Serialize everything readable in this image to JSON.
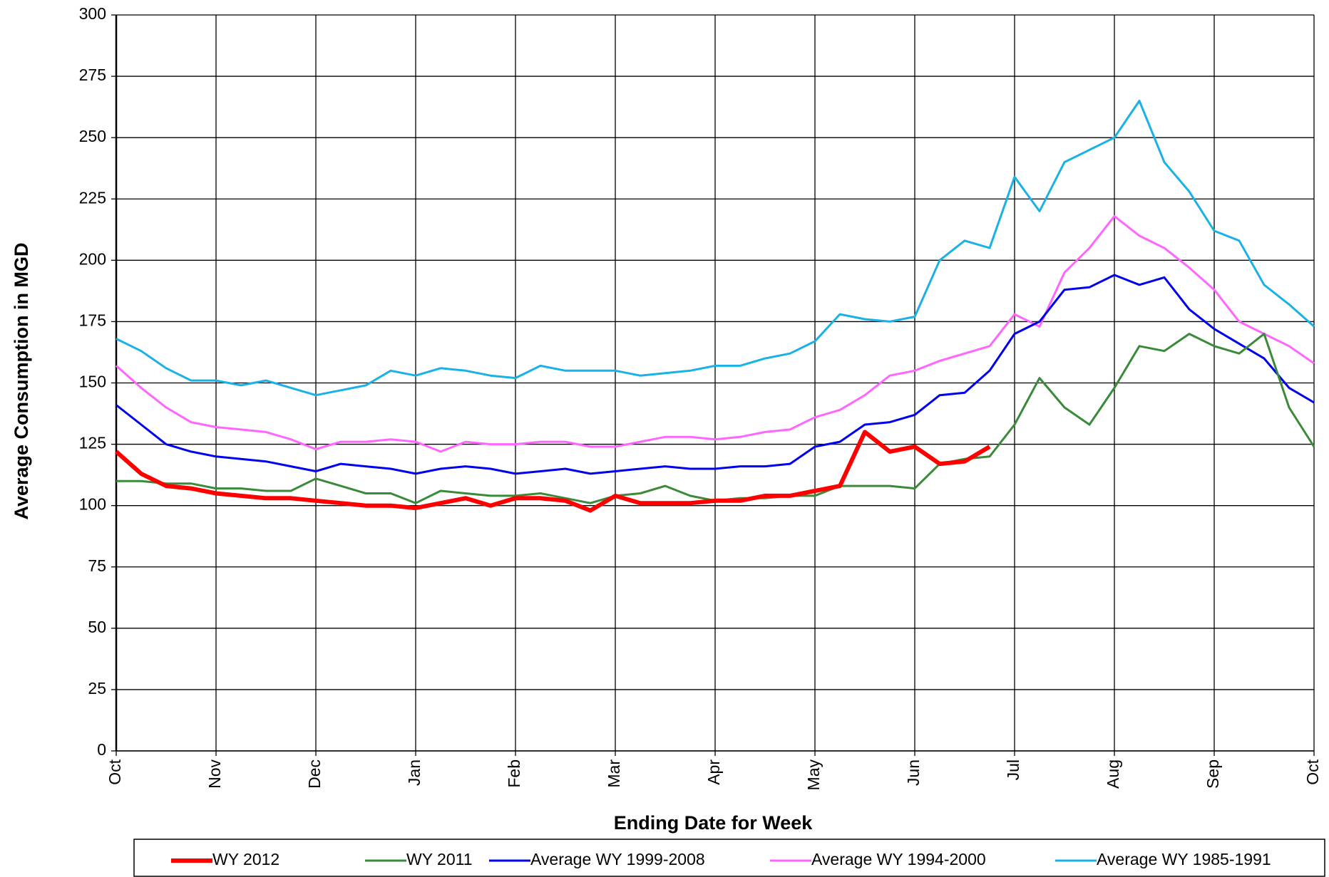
{
  "chart_data": {
    "type": "line",
    "xlabel": "Ending Date for Week",
    "ylabel": "Average Consumption in MGD",
    "categories": [
      "Oct",
      null,
      null,
      null,
      "Nov",
      null,
      null,
      null,
      "Dec",
      null,
      null,
      null,
      "Jan",
      null,
      null,
      null,
      "Feb",
      null,
      null,
      null,
      "Mar",
      null,
      null,
      null,
      "Apr",
      null,
      null,
      null,
      "May",
      null,
      null,
      null,
      "Jun",
      null,
      null,
      null,
      "Jul",
      null,
      null,
      null,
      "Aug",
      null,
      null,
      null,
      "Sep",
      null,
      null,
      null,
      "Oct"
    ],
    "ylim": [
      0,
      300
    ],
    "yticks": [
      0,
      25,
      50,
      75,
      100,
      125,
      150,
      175,
      200,
      225,
      250,
      275,
      300
    ],
    "grid": true,
    "series": [
      {
        "name": "WY 2012",
        "color": "#ff0000",
        "width": 6,
        "values": [
          122,
          113,
          108,
          107,
          105,
          104,
          103,
          103,
          102,
          101,
          100,
          100,
          99,
          101,
          103,
          100,
          103,
          103,
          102,
          98,
          104,
          101,
          101,
          101,
          102,
          102,
          104,
          104,
          106,
          108,
          130,
          122,
          124,
          117,
          118,
          124,
          null,
          null,
          null,
          null,
          null,
          null,
          null,
          null,
          null,
          null,
          null,
          null,
          null
        ]
      },
      {
        "name": "WY 2011",
        "color": "#3a8a3a",
        "width": 3,
        "values": [
          110,
          110,
          109,
          109,
          107,
          107,
          106,
          106,
          111,
          108,
          105,
          105,
          101,
          106,
          105,
          104,
          104,
          105,
          103,
          101,
          104,
          105,
          108,
          104,
          102,
          103,
          103,
          104,
          104,
          108,
          108,
          108,
          107,
          117,
          119,
          120,
          133,
          152,
          140,
          133,
          148,
          165,
          163,
          170,
          165,
          162,
          170,
          140,
          124
        ]
      },
      {
        "name": "Average WY  1999-2008",
        "color": "#0000ee",
        "width": 3,
        "values": [
          141,
          133,
          125,
          122,
          120,
          119,
          118,
          116,
          114,
          117,
          116,
          115,
          113,
          115,
          116,
          115,
          113,
          114,
          115,
          113,
          114,
          115,
          116,
          115,
          115,
          116,
          116,
          117,
          124,
          126,
          133,
          134,
          137,
          145,
          146,
          155,
          170,
          175,
          188,
          189,
          194,
          190,
          193,
          180,
          172,
          166,
          160,
          148,
          142
        ]
      },
      {
        "name": "Average WY  1994-2000",
        "color": "#ff66ff",
        "width": 3,
        "values": [
          157,
          148,
          140,
          134,
          132,
          131,
          130,
          127,
          123,
          126,
          126,
          127,
          126,
          122,
          126,
          125,
          125,
          126,
          126,
          124,
          124,
          126,
          128,
          128,
          127,
          128,
          130,
          131,
          136,
          139,
          145,
          153,
          155,
          159,
          162,
          165,
          178,
          173,
          195,
          205,
          218,
          210,
          205,
          197,
          188,
          175,
          170,
          165,
          158
        ]
      },
      {
        "name": "Average WY  1985-1991",
        "color": "#1ab2e6",
        "width": 3,
        "values": [
          168,
          163,
          156,
          151,
          151,
          149,
          151,
          148,
          145,
          147,
          149,
          155,
          153,
          156,
          155,
          153,
          152,
          157,
          155,
          155,
          155,
          153,
          154,
          155,
          157,
          157,
          160,
          162,
          167,
          178,
          176,
          175,
          177,
          200,
          208,
          205,
          234,
          220,
          240,
          245,
          250,
          265,
          240,
          228,
          212,
          208,
          190,
          182,
          173
        ]
      }
    ]
  }
}
